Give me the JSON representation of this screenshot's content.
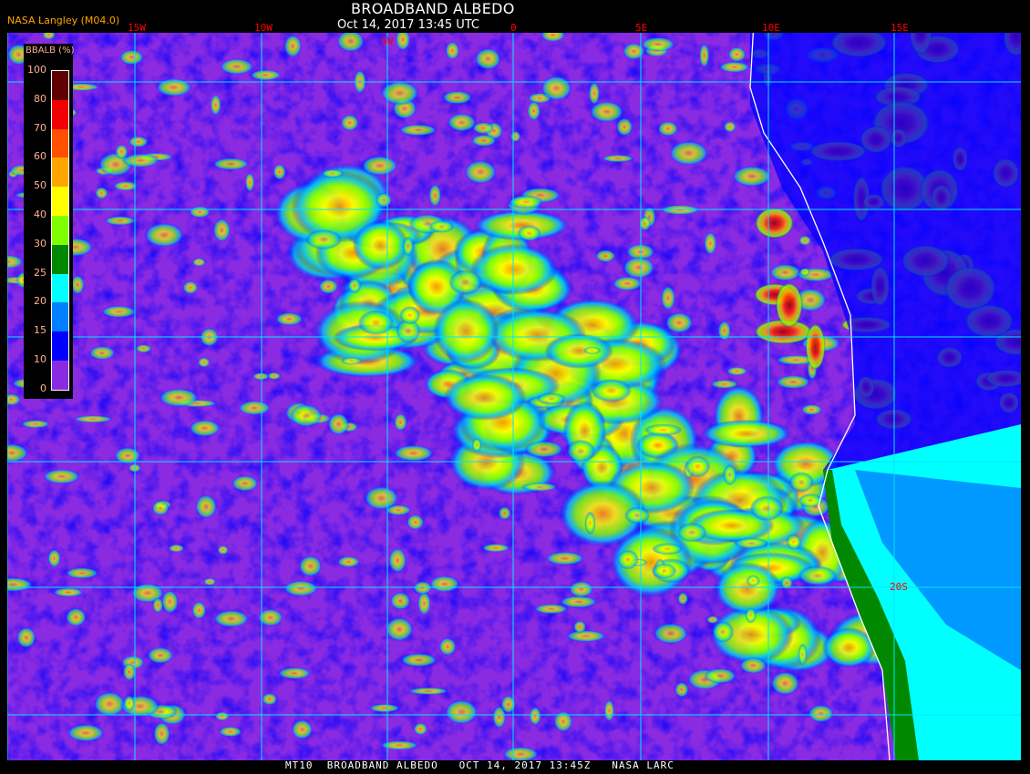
{
  "header": {
    "title": "BROADBAND ALBEDO",
    "subtitle": "Oct 14, 2017 13:45 UTC",
    "credit": "NASA Langley (M04.0)"
  },
  "map": {
    "longitude_labels": [
      "15W",
      "10W",
      "5W",
      "0",
      "5E",
      "10E",
      "15E"
    ],
    "latitude_labels": [
      "20S"
    ],
    "background_color": "#8a2be2",
    "coastline_color": "#ffffff",
    "grid_color": "#00e5ff"
  },
  "legend": {
    "title": "BBALB (%)",
    "ticks": [
      "100",
      "80",
      "70",
      "60",
      "50",
      "40",
      "30",
      "25",
      "20",
      "15",
      "10",
      "0"
    ],
    "colors": [
      "#600000",
      "#600000",
      "#f00000",
      "#ff5000",
      "#ffa500",
      "#ffff00",
      "#80ff00",
      "#008800",
      "#00ffff",
      "#0080ff",
      "#0000ff",
      "#8a2be2"
    ]
  },
  "footer": {
    "text": "MT10  BROADBAND ALBEDO   OCT 14, 2017 13:45Z   NASA LARC"
  }
}
